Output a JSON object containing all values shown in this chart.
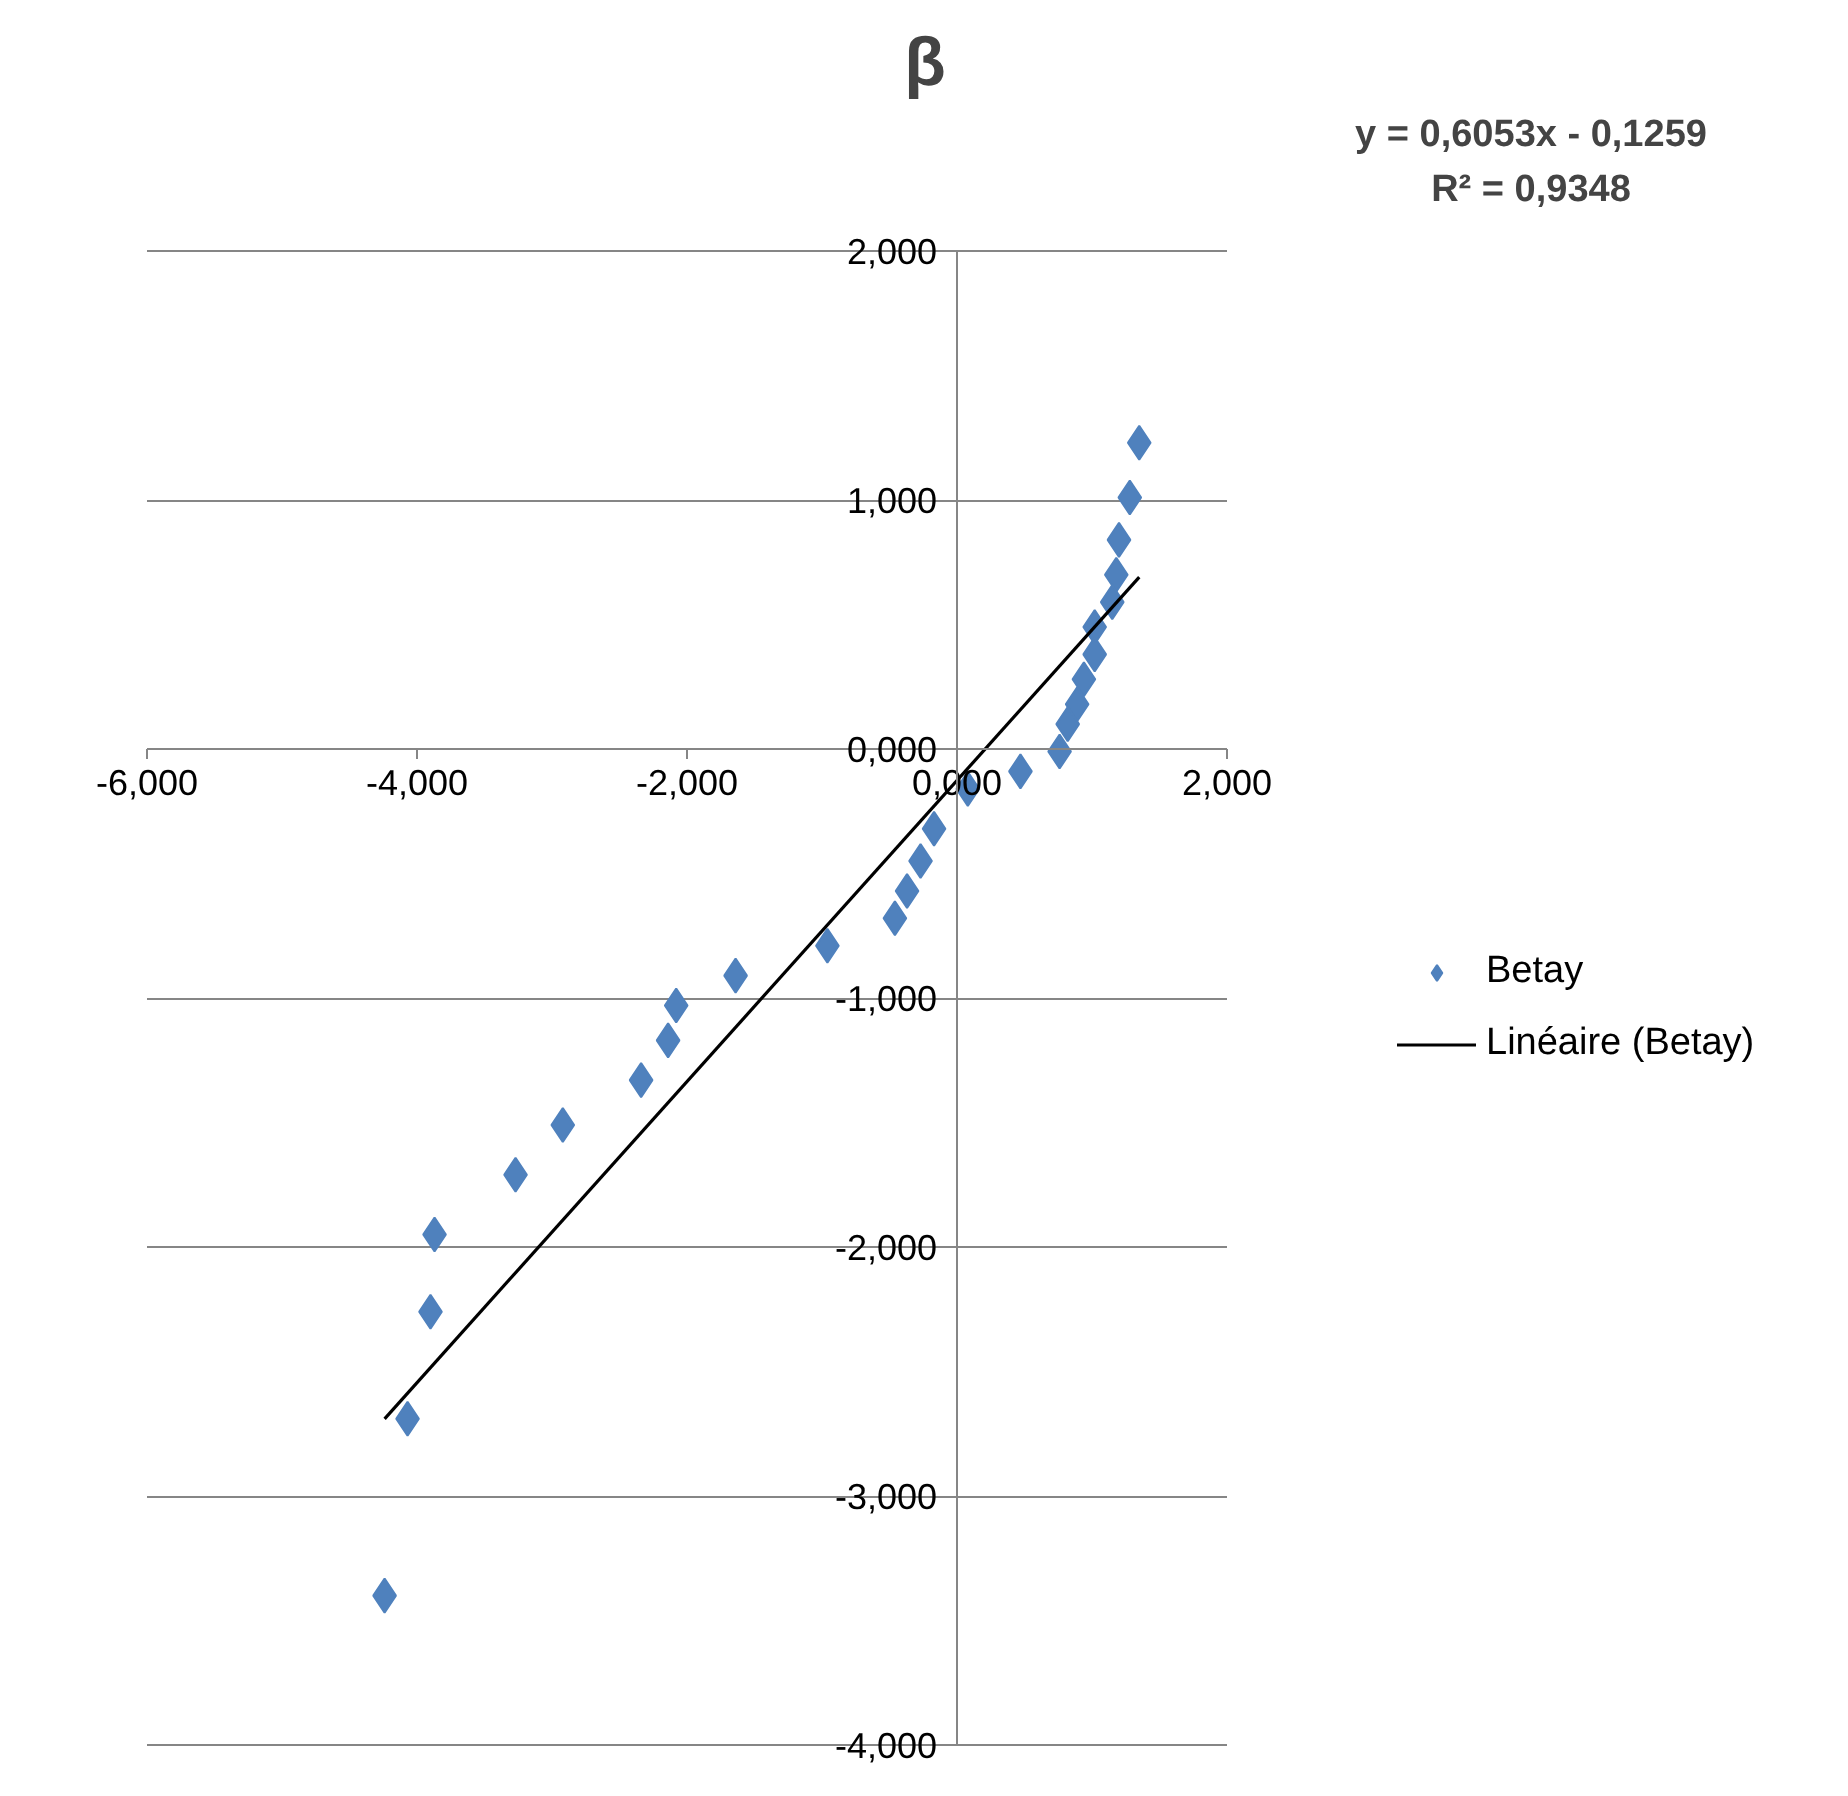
{
  "chart_data": {
    "type": "scatter",
    "title": "β",
    "annotations": [
      "y = 0,6053x - 0,1259\nR² = 0,9348"
    ],
    "xlim": [
      -6,
      2
    ],
    "ylim": [
      -4,
      2
    ],
    "xticks": [
      {
        "value": -6,
        "label": "-6,000"
      },
      {
        "value": -4,
        "label": "-4,000"
      },
      {
        "value": -2,
        "label": "-2,000"
      },
      {
        "value": 0,
        "label": "0,000"
      },
      {
        "value": 2,
        "label": "2,000"
      }
    ],
    "yticks": [
      {
        "value": -4,
        "label": "-4,000"
      },
      {
        "value": -3,
        "label": "-3,000"
      },
      {
        "value": -2,
        "label": "-2,000"
      },
      {
        "value": -1,
        "label": "-1,000"
      },
      {
        "value": 0,
        "label": "0,000"
      },
      {
        "value": 1,
        "label": "1,000"
      },
      {
        "value": 2,
        "label": "2,000"
      }
    ],
    "grid": "y",
    "legend": "right",
    "marker": "diamond",
    "series": [
      {
        "name": "Betay",
        "color": "#4f81bd",
        "x": [
          1.35,
          1.28,
          1.2,
          1.18,
          1.15,
          1.02,
          1.02,
          0.94,
          0.89,
          0.82,
          0.76,
          0.47,
          0.08,
          -0.17,
          -0.27,
          -0.37,
          -0.46,
          -0.96,
          -1.64,
          -2.08,
          -2.14,
          -2.34,
          -2.92,
          -3.27,
          -3.87,
          -3.9,
          -4.07,
          -4.24
        ],
        "values": [
          1.23,
          1.01,
          0.84,
          0.7,
          0.59,
          0.49,
          0.38,
          0.28,
          0.18,
          0.1,
          -0.01,
          -0.09,
          -0.16,
          -0.32,
          -0.45,
          -0.57,
          -0.68,
          -0.79,
          -0.91,
          -1.03,
          -1.17,
          -1.33,
          -1.51,
          -1.71,
          -1.95,
          -2.26,
          -2.69,
          -3.4
        ]
      },
      {
        "name": "Linéaire (Betay)",
        "type": "line",
        "color": "#000000",
        "x": [
          -4.24,
          1.35
        ],
        "values": [
          -2.69,
          0.69
        ],
        "marker": "none",
        "line_style": "solid"
      }
    ]
  }
}
